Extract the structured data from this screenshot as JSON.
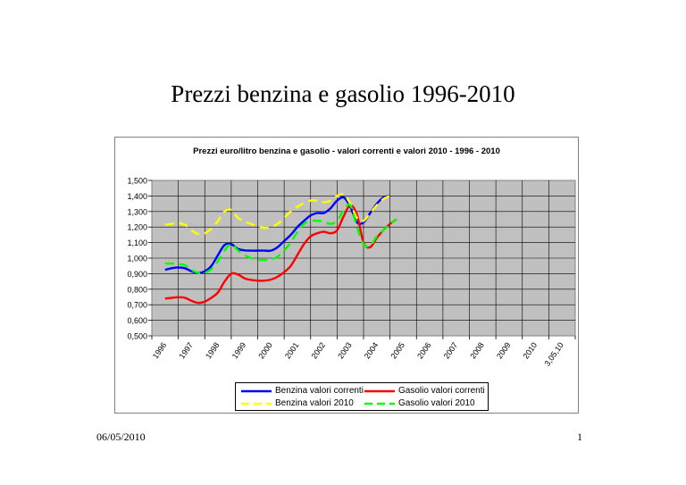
{
  "slide": {
    "title": "Prezzi benzina e gasolio 1996-2010",
    "date": "06/05/2010",
    "page": "1"
  },
  "chart_data": {
    "type": "line",
    "title": "Prezzi euro/litro benzina e gasolio - valori correnti e valori 2010 - 1996 - 2010",
    "xlabel": "",
    "ylabel": "",
    "categories": [
      "1996",
      "1997",
      "1998",
      "1999",
      "2000",
      "2001",
      "2002",
      "2003",
      "2004",
      "2005",
      "2006",
      "2007",
      "2008",
      "2009",
      "2010",
      "3,05,10"
    ],
    "y_ticks": [
      "1,500",
      "1,400",
      "1,300",
      "1,200",
      "1,100",
      "1,000",
      "0,900",
      "0,800",
      "0,700",
      "0,600",
      "0,500"
    ],
    "ylim": [
      0.5,
      1.5
    ],
    "grid": true,
    "plot_background": "#c0c0c0",
    "legend_position": "bottom",
    "series": [
      {
        "name": "Benzina valori correnti",
        "color": "#0000ff",
        "dash": "solid",
        "points": [
          [
            0,
            0.925
          ],
          [
            0.5,
            0.935
          ],
          [
            1,
            0.94
          ],
          [
            1.5,
            0.935
          ],
          [
            2,
            0.915
          ],
          [
            2.5,
            0.905
          ],
          [
            3,
            0.915
          ],
          [
            3.5,
            0.95
          ],
          [
            4,
            1.02
          ],
          [
            4.5,
            1.085
          ],
          [
            5,
            1.09
          ],
          [
            5.5,
            1.06
          ],
          [
            6,
            1.05
          ],
          [
            6.5,
            1.048
          ],
          [
            7,
            1.048
          ],
          [
            7.5,
            1.048
          ],
          [
            8,
            1.048
          ],
          [
            8.5,
            1.07
          ],
          [
            9,
            1.11
          ],
          [
            9.5,
            1.15
          ],
          [
            10,
            1.2
          ],
          [
            10.5,
            1.24
          ],
          [
            11,
            1.275
          ],
          [
            11.5,
            1.29
          ],
          [
            12,
            1.29
          ],
          [
            12.5,
            1.32
          ],
          [
            13,
            1.37
          ],
          [
            13.5,
            1.39
          ],
          [
            14,
            1.33
          ],
          [
            14.5,
            1.23
          ],
          [
            15,
            1.23
          ],
          [
            15.5,
            1.29
          ],
          [
            16,
            1.35
          ],
          [
            16.5,
            1.39
          ],
          [
            17,
            1.4
          ]
        ]
      },
      {
        "name": "Gasolio valori correnti",
        "color": "#ff0000",
        "dash": "solid",
        "points": [
          [
            0,
            0.74
          ],
          [
            0.5,
            0.745
          ],
          [
            1,
            0.748
          ],
          [
            1.5,
            0.745
          ],
          [
            2,
            0.725
          ],
          [
            2.5,
            0.712
          ],
          [
            3,
            0.72
          ],
          [
            3.5,
            0.745
          ],
          [
            4,
            0.78
          ],
          [
            4.5,
            0.85
          ],
          [
            5,
            0.9
          ],
          [
            5.5,
            0.895
          ],
          [
            6,
            0.87
          ],
          [
            6.5,
            0.86
          ],
          [
            7,
            0.855
          ],
          [
            7.5,
            0.855
          ],
          [
            8,
            0.862
          ],
          [
            8.5,
            0.88
          ],
          [
            9,
            0.91
          ],
          [
            9.5,
            0.95
          ],
          [
            10,
            1.02
          ],
          [
            10.5,
            1.09
          ],
          [
            11,
            1.14
          ],
          [
            11.5,
            1.16
          ],
          [
            12,
            1.17
          ],
          [
            12.5,
            1.16
          ],
          [
            13,
            1.18
          ],
          [
            13.5,
            1.27
          ],
          [
            14,
            1.34
          ],
          [
            14.5,
            1.28
          ],
          [
            15,
            1.1
          ],
          [
            15.5,
            1.07
          ],
          [
            16,
            1.13
          ],
          [
            16.5,
            1.18
          ],
          [
            17,
            1.22
          ],
          [
            17.5,
            1.25
          ]
        ]
      },
      {
        "name": "Benzina valori 2010",
        "color": "#ffff00",
        "dash": "dashed",
        "points": [
          [
            0,
            1.215
          ],
          [
            0.5,
            1.22
          ],
          [
            1,
            1.225
          ],
          [
            1.5,
            1.215
          ],
          [
            2,
            1.18
          ],
          [
            2.5,
            1.155
          ],
          [
            3,
            1.16
          ],
          [
            3.5,
            1.19
          ],
          [
            4,
            1.24
          ],
          [
            4.5,
            1.3
          ],
          [
            5,
            1.31
          ],
          [
            5.5,
            1.26
          ],
          [
            6,
            1.235
          ],
          [
            6.5,
            1.22
          ],
          [
            7,
            1.205
          ],
          [
            7.5,
            1.195
          ],
          [
            8,
            1.2
          ],
          [
            8.5,
            1.22
          ],
          [
            9,
            1.26
          ],
          [
            9.5,
            1.3
          ],
          [
            10,
            1.33
          ],
          [
            10.5,
            1.355
          ],
          [
            11,
            1.37
          ],
          [
            11.5,
            1.37
          ],
          [
            12,
            1.36
          ],
          [
            12.5,
            1.37
          ],
          [
            13,
            1.4
          ],
          [
            13.5,
            1.41
          ],
          [
            14,
            1.35
          ],
          [
            14.5,
            1.26
          ],
          [
            15,
            1.24
          ],
          [
            15.5,
            1.29
          ],
          [
            16,
            1.34
          ],
          [
            16.5,
            1.38
          ],
          [
            17,
            1.4
          ]
        ]
      },
      {
        "name": "Gasolio valori 2010",
        "color": "#00ff00",
        "dash": "dashed",
        "points": [
          [
            0,
            0.965
          ],
          [
            0.5,
            0.965
          ],
          [
            1,
            0.962
          ],
          [
            1.5,
            0.955
          ],
          [
            2,
            0.925
          ],
          [
            2.5,
            0.905
          ],
          [
            3,
            0.905
          ],
          [
            3.5,
            0.93
          ],
          [
            4,
            0.98
          ],
          [
            4.5,
            1.05
          ],
          [
            5,
            1.09
          ],
          [
            5.5,
            1.05
          ],
          [
            6,
            1.02
          ],
          [
            6.5,
            1.0
          ],
          [
            7,
            0.99
          ],
          [
            7.5,
            0.988
          ],
          [
            8,
            0.99
          ],
          [
            8.5,
            1.01
          ],
          [
            9,
            1.05
          ],
          [
            9.5,
            1.1
          ],
          [
            10,
            1.17
          ],
          [
            10.5,
            1.22
          ],
          [
            11,
            1.24
          ],
          [
            11.5,
            1.24
          ],
          [
            12,
            1.235
          ],
          [
            12.5,
            1.22
          ],
          [
            13,
            1.24
          ],
          [
            13.5,
            1.31
          ],
          [
            14,
            1.34
          ],
          [
            14.5,
            1.2
          ],
          [
            15,
            1.09
          ],
          [
            15.5,
            1.08
          ],
          [
            16,
            1.14
          ],
          [
            16.5,
            1.18
          ],
          [
            17,
            1.22
          ],
          [
            17.5,
            1.25
          ]
        ]
      }
    ]
  }
}
